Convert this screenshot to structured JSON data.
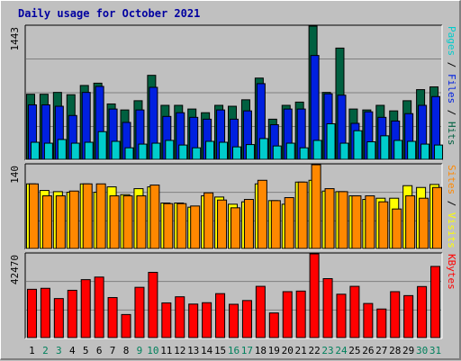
{
  "chart_data": {
    "title": "Daily usage for October 2021",
    "days": [
      "1",
      "2",
      "3",
      "4",
      "5",
      "6",
      "7",
      "8",
      "9",
      "10",
      "11",
      "12",
      "13",
      "14",
      "15",
      "16",
      "17",
      "18",
      "19",
      "20",
      "21",
      "22",
      "23",
      "24",
      "25",
      "26",
      "27",
      "28",
      "29",
      "30",
      "31"
    ],
    "weekend_days": [
      "2",
      "3",
      "9",
      "10",
      "16",
      "17",
      "23",
      "24",
      "30",
      "31"
    ],
    "colors": {
      "pages": "#00cccc",
      "files": "#0020e0",
      "hits": "#006040",
      "visits": "#ffff00",
      "sites": "#ff8800",
      "kbytes": "#ff0000",
      "weekday_label": "#000000",
      "weekend_label": "#00805c",
      "title": "#0000a0"
    },
    "panels": [
      {
        "type": "bar",
        "ymax_label": "1443",
        "ymax": 1443,
        "legend": [
          {
            "text": "Pages",
            "color": "#00cccc"
          },
          {
            "text": " / ",
            "color": "#000000"
          },
          {
            "text": "Files",
            "color": "#0020e0"
          },
          {
            "text": " / ",
            "color": "#000000"
          },
          {
            "text": "Hits",
            "color": "#006040"
          }
        ],
        "series": [
          {
            "name": "Hits",
            "values": [
              705,
              705,
              725,
              700,
              800,
              825,
              600,
              535,
              635,
              910,
              585,
              585,
              545,
              505,
              585,
              575,
              645,
              880,
              435,
              585,
              620,
              1443,
              725,
              1205,
              545,
              535,
              585,
              525,
              635,
              755,
              785
            ]
          },
          {
            "name": "Files",
            "values": [
              590,
              590,
              575,
              475,
              725,
              790,
              545,
              400,
              535,
              780,
              465,
              505,
              455,
              435,
              535,
              435,
              525,
              820,
              375,
              545,
              545,
              1125,
              710,
              695,
              390,
              515,
              455,
              415,
              495,
              585,
              680
            ]
          },
          {
            "name": "Pages",
            "values": [
              185,
              175,
              215,
              175,
              185,
              300,
              195,
              125,
              165,
              175,
              205,
              155,
              125,
              195,
              185,
              135,
              160,
              225,
              145,
              175,
              125,
              205,
              385,
              175,
              310,
              190,
              255,
              205,
              195,
              165,
              155
            ]
          }
        ]
      },
      {
        "type": "bar",
        "ymax_label": "140",
        "ymax": 140,
        "legend": [
          {
            "text": "Sites",
            "color": "#ff8800"
          },
          {
            "text": " / ",
            "color": "#000000"
          },
          {
            "text": "Visits",
            "color": "#ffff00"
          }
        ],
        "series": [
          {
            "name": "Visits",
            "values": [
              108,
              97,
              95,
              94,
              108,
              94,
              103,
              90,
              100,
              103,
              76,
              76,
              69,
              88,
              86,
              74,
              78,
              108,
              80,
              74,
              111,
              114,
              96,
              95,
              88,
              82,
              84,
              84,
              105,
              102,
              107
            ]
          },
          {
            "name": "Sites",
            "values": [
              108,
              88,
              88,
              96,
              108,
              108,
              88,
              88,
              88,
              106,
              75,
              75,
              71,
              93,
              81,
              68,
              82,
              114,
              80,
              85,
              111,
              140,
              100,
              95,
              88,
              88,
              78,
              66,
              88,
              84,
              102
            ]
          }
        ]
      },
      {
        "type": "bar",
        "ymax_label": "42470",
        "ymax": 42470,
        "legend": [
          {
            "text": "KBytes",
            "color": "#ff0000"
          }
        ],
        "series": [
          {
            "name": "KBytes",
            "values": [
              24500,
              25000,
              19800,
              24000,
              29400,
              30700,
              20300,
              11700,
              25500,
              33100,
              17600,
              20700,
              17000,
              17700,
              22300,
              16900,
              18800,
              26000,
              12500,
              23300,
              23600,
              42470,
              29900,
              22000,
              26000,
              17300,
              14500,
              23300,
              21300,
              25900,
              36100
            ]
          }
        ]
      }
    ]
  }
}
